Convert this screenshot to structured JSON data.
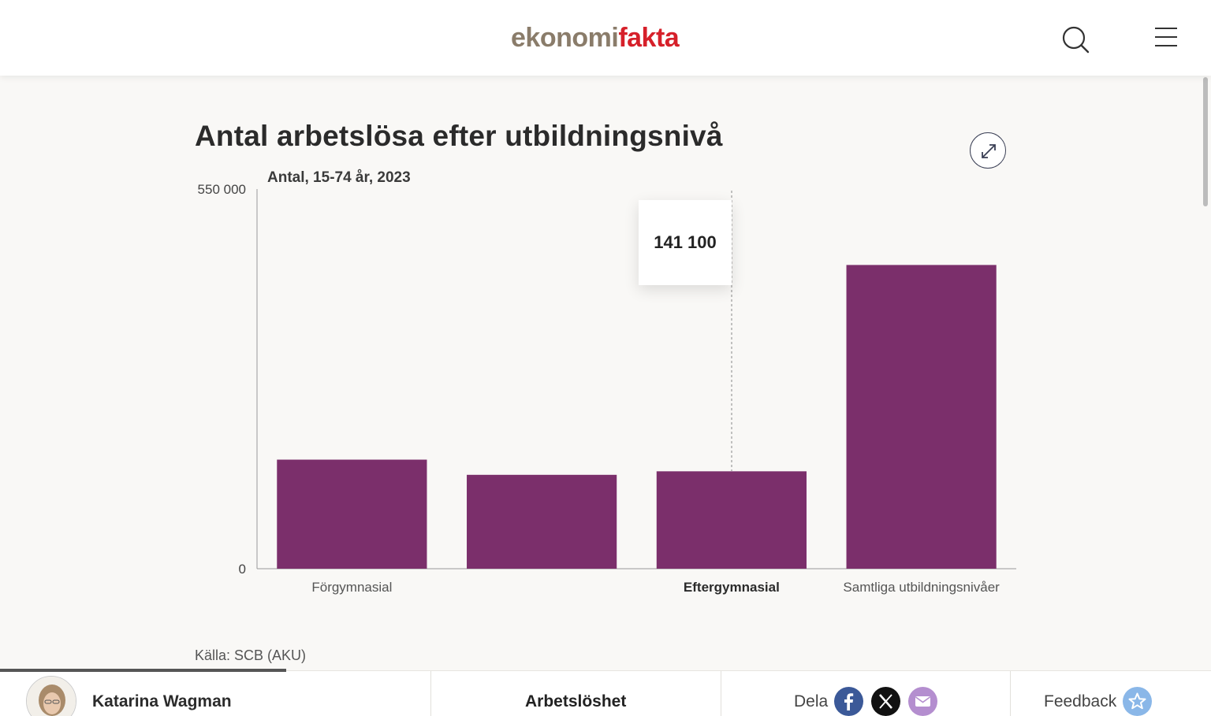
{
  "header": {
    "logo_part1": "ekonomi",
    "logo_part2": "fakta",
    "logo_colors": {
      "part1": "#8a7c6a",
      "part2": "#d6202a"
    }
  },
  "chart": {
    "title": "Antal arbetslösa efter utbildningsnivå",
    "subtitle": "Antal, 15-74 år, 2023",
    "y_tick_max": "550 000",
    "y_tick_min": "0",
    "tooltip_value": "141 100",
    "source": "Källa: SCB (AKU)",
    "bar_color": "#7b2f6b",
    "x_labels": [
      "Förgymnasial",
      "",
      "Eftergymnasial",
      "Samtliga utbildningsnivåer"
    ],
    "active_label_index": 2
  },
  "chart_data": {
    "type": "bar",
    "title": "Antal arbetslösa efter utbildningsnivå",
    "subtitle": "Antal, 15-74 år, 2023",
    "categories": [
      "Förgymnasial",
      "",
      "Eftergymnasial",
      "Samtliga utbildningsnivåer"
    ],
    "values": [
      158000,
      136000,
      141100,
      440000
    ],
    "ylim": [
      0,
      550000
    ],
    "xlabel": "",
    "ylabel": "",
    "grid": false,
    "highlighted_index": 2
  },
  "footer": {
    "author": "Katarina Wagman",
    "topic": "Arbetslöshet",
    "share_label": "Dela",
    "feedback_label": "Feedback",
    "share_colors": {
      "facebook": "#3b5998",
      "x": "#111111",
      "email": "#b48ecf"
    }
  }
}
